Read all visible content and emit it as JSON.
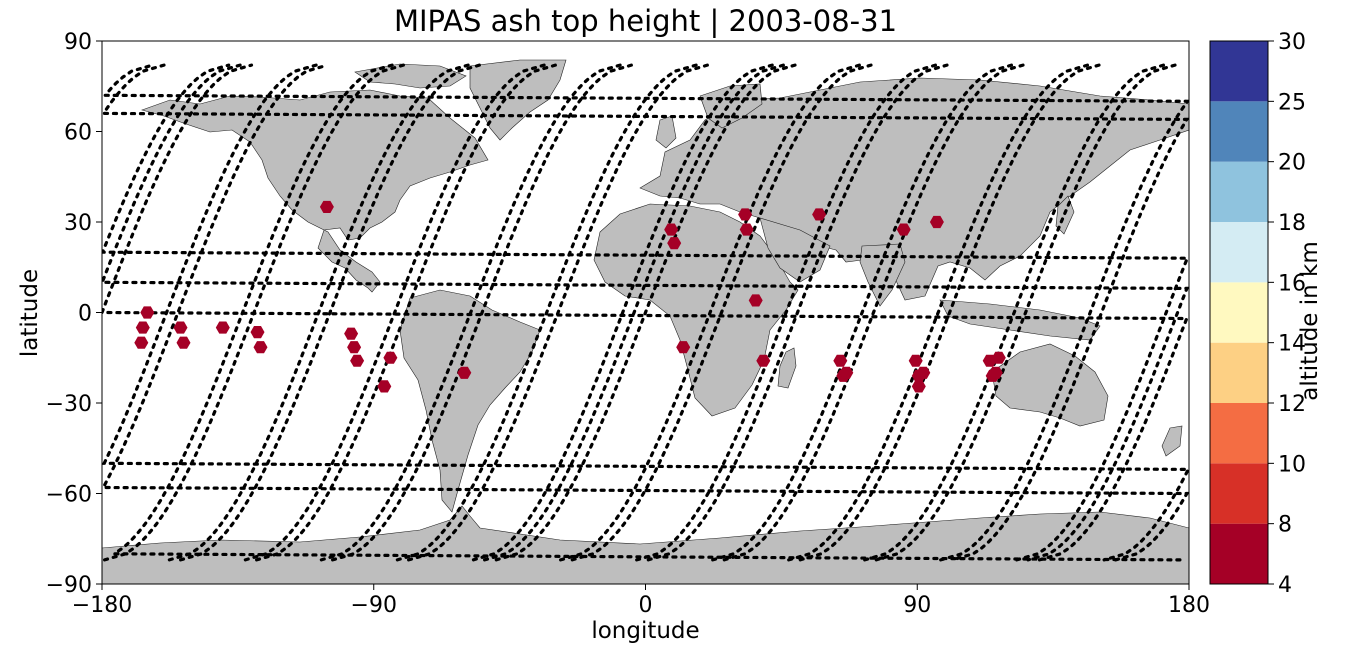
{
  "title": "MIPAS ash top height | 2003-08-31",
  "xlabel": "longitude",
  "ylabel": "latitude",
  "colorbar": {
    "label": "altitude in km",
    "ticks": [
      "4",
      "8",
      "10",
      "12",
      "14",
      "16",
      "18",
      "20",
      "25",
      "30"
    ],
    "colors": [
      "#a50026",
      "#d73027",
      "#f46d43",
      "#fdae61",
      "#fee090",
      "#ffffbf",
      "#e0f3f8",
      "#abd9e9",
      "#74add1",
      "#4575b4",
      "#313695"
    ],
    "bands": [
      {
        "from": 4,
        "to": 8,
        "color": "#a50026"
      },
      {
        "from": 8,
        "to": 10,
        "color": "#d73027"
      },
      {
        "from": 10,
        "to": 12,
        "color": "#f46d43"
      },
      {
        "from": 12,
        "to": 14,
        "color": "#fdae61"
      },
      {
        "from": 14,
        "to": 16,
        "color": "#fee090"
      },
      {
        "from": 16,
        "to": 18,
        "color": "#ffffbf"
      },
      {
        "from": 18,
        "to": 20,
        "color": "#e0f3f8"
      },
      {
        "from": 20,
        "to": 25,
        "color": "#abd9e9"
      },
      {
        "from": 25,
        "to": 30,
        "color": "#313695"
      }
    ]
  },
  "chart_data": {
    "type": "scatter",
    "title": "MIPAS ash top height | 2003-08-31",
    "xlabel": "longitude",
    "ylabel": "latitude",
    "xlim": [
      -180,
      180
    ],
    "ylim": [
      -90,
      90
    ],
    "xticks": [
      -180,
      -90,
      0,
      90,
      180
    ],
    "xtick_labels": [
      "−180",
      "−90",
      "0",
      "90",
      "180"
    ],
    "yticks": [
      -90,
      -60,
      -30,
      0,
      30,
      60,
      90
    ],
    "ytick_labels": [
      "−90",
      "−60",
      "−30",
      "0",
      "30",
      "60",
      "90"
    ],
    "land_color": "#bebebe",
    "track_color": "#000000",
    "marker_color": "#a50026",
    "ash_points": [
      {
        "lon": -165.0,
        "lat": 0.0
      },
      {
        "lon": -166.5,
        "lat": -5.0
      },
      {
        "lon": -167.0,
        "lat": -10.0
      },
      {
        "lon": -154.0,
        "lat": -5.0
      },
      {
        "lon": -153.0,
        "lat": -10.0
      },
      {
        "lon": -140.0,
        "lat": -5.0
      },
      {
        "lon": -128.5,
        "lat": -6.5
      },
      {
        "lon": -127.5,
        "lat": -11.5
      },
      {
        "lon": -105.5,
        "lat": 35.0
      },
      {
        "lon": -97.5,
        "lat": -7.0
      },
      {
        "lon": -96.5,
        "lat": -11.5
      },
      {
        "lon": -95.5,
        "lat": -16.0
      },
      {
        "lon": -84.5,
        "lat": -15.0
      },
      {
        "lon": -86.5,
        "lat": -24.5
      },
      {
        "lon": -60.0,
        "lat": -20.0
      },
      {
        "lon": 8.5,
        "lat": 27.5
      },
      {
        "lon": 9.5,
        "lat": 23.0
      },
      {
        "lon": 12.5,
        "lat": -11.5
      },
      {
        "lon": 33.0,
        "lat": 32.5
      },
      {
        "lon": 33.5,
        "lat": 27.5
      },
      {
        "lon": 36.5,
        "lat": 4.0
      },
      {
        "lon": 39.0,
        "lat": -16.0
      },
      {
        "lon": 57.5,
        "lat": 32.5
      },
      {
        "lon": 64.5,
        "lat": -16.0
      },
      {
        "lon": 65.5,
        "lat": -21.0
      },
      {
        "lon": 66.5,
        "lat": -20.0
      },
      {
        "lon": 85.5,
        "lat": 27.5
      },
      {
        "lon": 96.5,
        "lat": 30.0
      },
      {
        "lon": 89.5,
        "lat": -16.0
      },
      {
        "lon": 90.5,
        "lat": -21.0
      },
      {
        "lon": 92.0,
        "lat": -20.0
      },
      {
        "lon": 90.5,
        "lat": -24.5
      },
      {
        "lon": 114.0,
        "lat": -16.0
      },
      {
        "lon": 117.0,
        "lat": -15.0
      },
      {
        "lon": 115.0,
        "lat": -21.0
      },
      {
        "lon": 116.0,
        "lat": -20.0
      }
    ]
  }
}
